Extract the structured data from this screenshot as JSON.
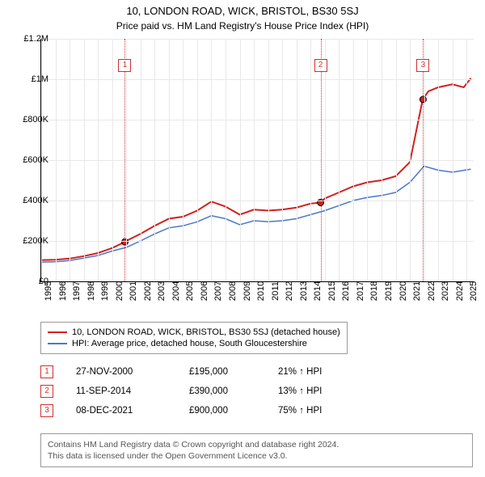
{
  "title": "10, LONDON ROAD, WICK, BRISTOL, BS30 5SJ",
  "subtitle": "Price paid vs. HM Land Registry's House Price Index (HPI)",
  "chart": {
    "type": "line",
    "background_color": "#ffffff",
    "grid_color": "#e8e8e8",
    "axis_color": "#000000",
    "title_fontsize": 13,
    "label_fontsize": 11,
    "xlim": [
      1995,
      2025.5
    ],
    "ylim": [
      0,
      1200000
    ],
    "ytick_step": 200000,
    "ytick_labels": [
      "£0",
      "£200K",
      "£400K",
      "£600K",
      "£800K",
      "£1M",
      "£1.2M"
    ],
    "xtick_step": 1,
    "xtick_labels": [
      "1995",
      "1996",
      "1997",
      "1998",
      "1999",
      "2000",
      "2001",
      "2002",
      "2003",
      "2004",
      "2005",
      "2006",
      "2007",
      "2008",
      "2009",
      "2010",
      "2011",
      "2012",
      "2013",
      "2014",
      "2015",
      "2016",
      "2017",
      "2018",
      "2019",
      "2020",
      "2021",
      "2022",
      "2023",
      "2024",
      "2025"
    ],
    "series": [
      {
        "name": "price_paid",
        "label": "10, LONDON ROAD, WICK, BRISTOL, BS30 5SJ (detached house)",
        "color": "#d22020",
        "line_width": 2,
        "x": [
          1995,
          1996,
          1997,
          1998,
          1999,
          2000,
          2000.9,
          2001,
          2002,
          2003,
          2004,
          2005,
          2006,
          2007,
          2008,
          2009,
          2010,
          2011,
          2012,
          2013,
          2014,
          2014.7,
          2015,
          2016,
          2017,
          2018,
          2019,
          2020,
          2021,
          2021.9,
          2022.3,
          2023,
          2024,
          2024.8,
          2025.3
        ],
        "y": [
          105000,
          107000,
          113000,
          125000,
          140000,
          165000,
          195000,
          200000,
          235000,
          275000,
          310000,
          320000,
          350000,
          395000,
          370000,
          330000,
          355000,
          350000,
          355000,
          365000,
          385000,
          390000,
          410000,
          440000,
          470000,
          490000,
          500000,
          520000,
          590000,
          900000,
          940000,
          960000,
          975000,
          960000,
          1005000
        ]
      },
      {
        "name": "hpi",
        "label": "HPI: Average price, detached house, South Gloucestershire",
        "color": "#4a78c8",
        "line_width": 1.5,
        "x": [
          1995,
          1996,
          1997,
          1998,
          1999,
          2000,
          2001,
          2002,
          2003,
          2004,
          2005,
          2006,
          2007,
          2008,
          2009,
          2010,
          2011,
          2012,
          2013,
          2014,
          2015,
          2016,
          2017,
          2018,
          2019,
          2020,
          2021,
          2022,
          2023,
          2024,
          2025.3
        ],
        "y": [
          95000,
          97000,
          103000,
          115000,
          128000,
          150000,
          168000,
          200000,
          235000,
          265000,
          275000,
          295000,
          325000,
          310000,
          280000,
          300000,
          295000,
          300000,
          310000,
          330000,
          350000,
          375000,
          400000,
          415000,
          425000,
          440000,
          490000,
          570000,
          550000,
          540000,
          555000
        ]
      }
    ],
    "event_lines": [
      {
        "x": 2000.9,
        "label": "1",
        "label_y": 1100000
      },
      {
        "x": 2014.7,
        "label": "2",
        "label_y": 1100000
      },
      {
        "x": 2021.93,
        "label": "3",
        "label_y": 1100000
      }
    ],
    "event_line_color": "#d03030",
    "markers": [
      {
        "x": 2000.9,
        "y": 195000,
        "fill": "#d22020",
        "stroke": "#000000"
      },
      {
        "x": 2014.7,
        "y": 390000,
        "fill": "#d22020",
        "stroke": "#000000"
      },
      {
        "x": 2021.93,
        "y": 900000,
        "fill": "#d22020",
        "stroke": "#000000"
      }
    ],
    "marker_size": 8
  },
  "legend": {
    "items": [
      {
        "color": "#d22020",
        "label": "10, LONDON ROAD, WICK, BRISTOL, BS30 5SJ (detached house)"
      },
      {
        "color": "#4a78c8",
        "label": "HPI: Average price, detached house, South Gloucestershire"
      }
    ]
  },
  "sales": [
    {
      "num": "1",
      "date": "27-NOV-2000",
      "price": "£195,000",
      "pct": "21% ↑ HPI"
    },
    {
      "num": "2",
      "date": "11-SEP-2014",
      "price": "£390,000",
      "pct": "13% ↑ HPI"
    },
    {
      "num": "3",
      "date": "08-DEC-2021",
      "price": "£900,000",
      "pct": "75% ↑ HPI"
    }
  ],
  "footer": {
    "line1": "Contains HM Land Registry data © Crown copyright and database right 2024.",
    "line2": "This data is licensed under the Open Government Licence v3.0."
  }
}
